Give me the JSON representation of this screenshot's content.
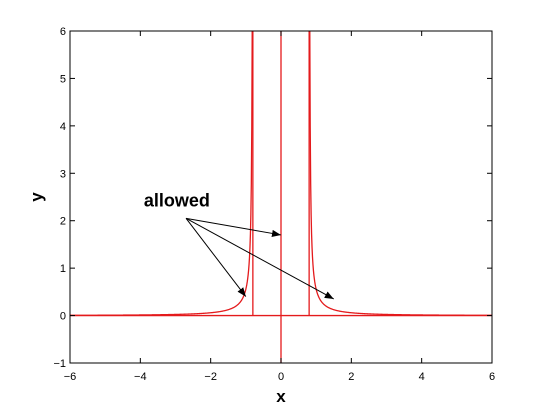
{
  "chart_data": {
    "type": "line",
    "title": "",
    "xlabel": "x",
    "ylabel": "y",
    "xlim": [
      -6,
      6
    ],
    "ylim": [
      -1,
      6
    ],
    "xticks": [
      -6,
      -4,
      -2,
      0,
      2,
      4,
      6
    ],
    "yticks": [
      -1,
      0,
      1,
      2,
      3,
      4,
      5,
      6
    ],
    "xtick_labels": [
      "−6",
      "−4",
      "−2",
      "0",
      "2",
      "4",
      "6"
    ],
    "ytick_labels": [
      "−1",
      "0",
      "1",
      "2",
      "3",
      "4",
      "5",
      "6"
    ],
    "grid": false,
    "line_color": "#e41a1c",
    "series": [
      {
        "type": "curve",
        "formula": "0.2/(x^2-0.64) for |x|>0.8",
        "x": [
          -6,
          -5,
          -4,
          -3,
          -2.5,
          -2,
          -1.6,
          -1.4,
          -1.2,
          -1.1,
          -1.0,
          -0.95,
          -0.9,
          -0.87,
          -0.85,
          -0.83,
          -0.82,
          -0.815,
          0.815,
          0.82,
          0.83,
          0.85,
          0.87,
          0.9,
          0.95,
          1.0,
          1.1,
          1.2,
          1.4,
          1.6,
          2,
          2.5,
          3,
          4,
          5,
          6
        ],
        "y": [
          0.006,
          0.008,
          0.013,
          0.023,
          0.036,
          0.059,
          0.104,
          0.151,
          0.25,
          0.351,
          0.556,
          0.763,
          1.176,
          1.73,
          2.353,
          4.05,
          6.0,
          6.0,
          6.0,
          6.0,
          4.05,
          2.353,
          1.73,
          1.176,
          0.763,
          0.556,
          0.351,
          0.25,
          0.151,
          0.104,
          0.059,
          0.036,
          0.023,
          0.013,
          0.008,
          0.006
        ]
      },
      {
        "type": "segment",
        "x": [
          -6,
          6
        ],
        "y": [
          0,
          0
        ]
      },
      {
        "type": "segment",
        "x": [
          -0.8,
          -0.8
        ],
        "y": [
          0,
          6
        ]
      },
      {
        "type": "segment",
        "x": [
          0,
          0
        ],
        "y": [
          -1,
          6
        ]
      },
      {
        "type": "segment",
        "x": [
          0.8,
          0.8
        ],
        "y": [
          0,
          6
        ]
      }
    ],
    "annotations": [
      {
        "text": "allowed",
        "text_at": [
          -3.9,
          2.3
        ],
        "arrow_from": [
          -2.7,
          2.05
        ],
        "arrows_to": [
          [
            0,
            1.7
          ],
          [
            -1.0,
            0.4
          ],
          [
            1.5,
            0.35
          ]
        ]
      }
    ]
  }
}
